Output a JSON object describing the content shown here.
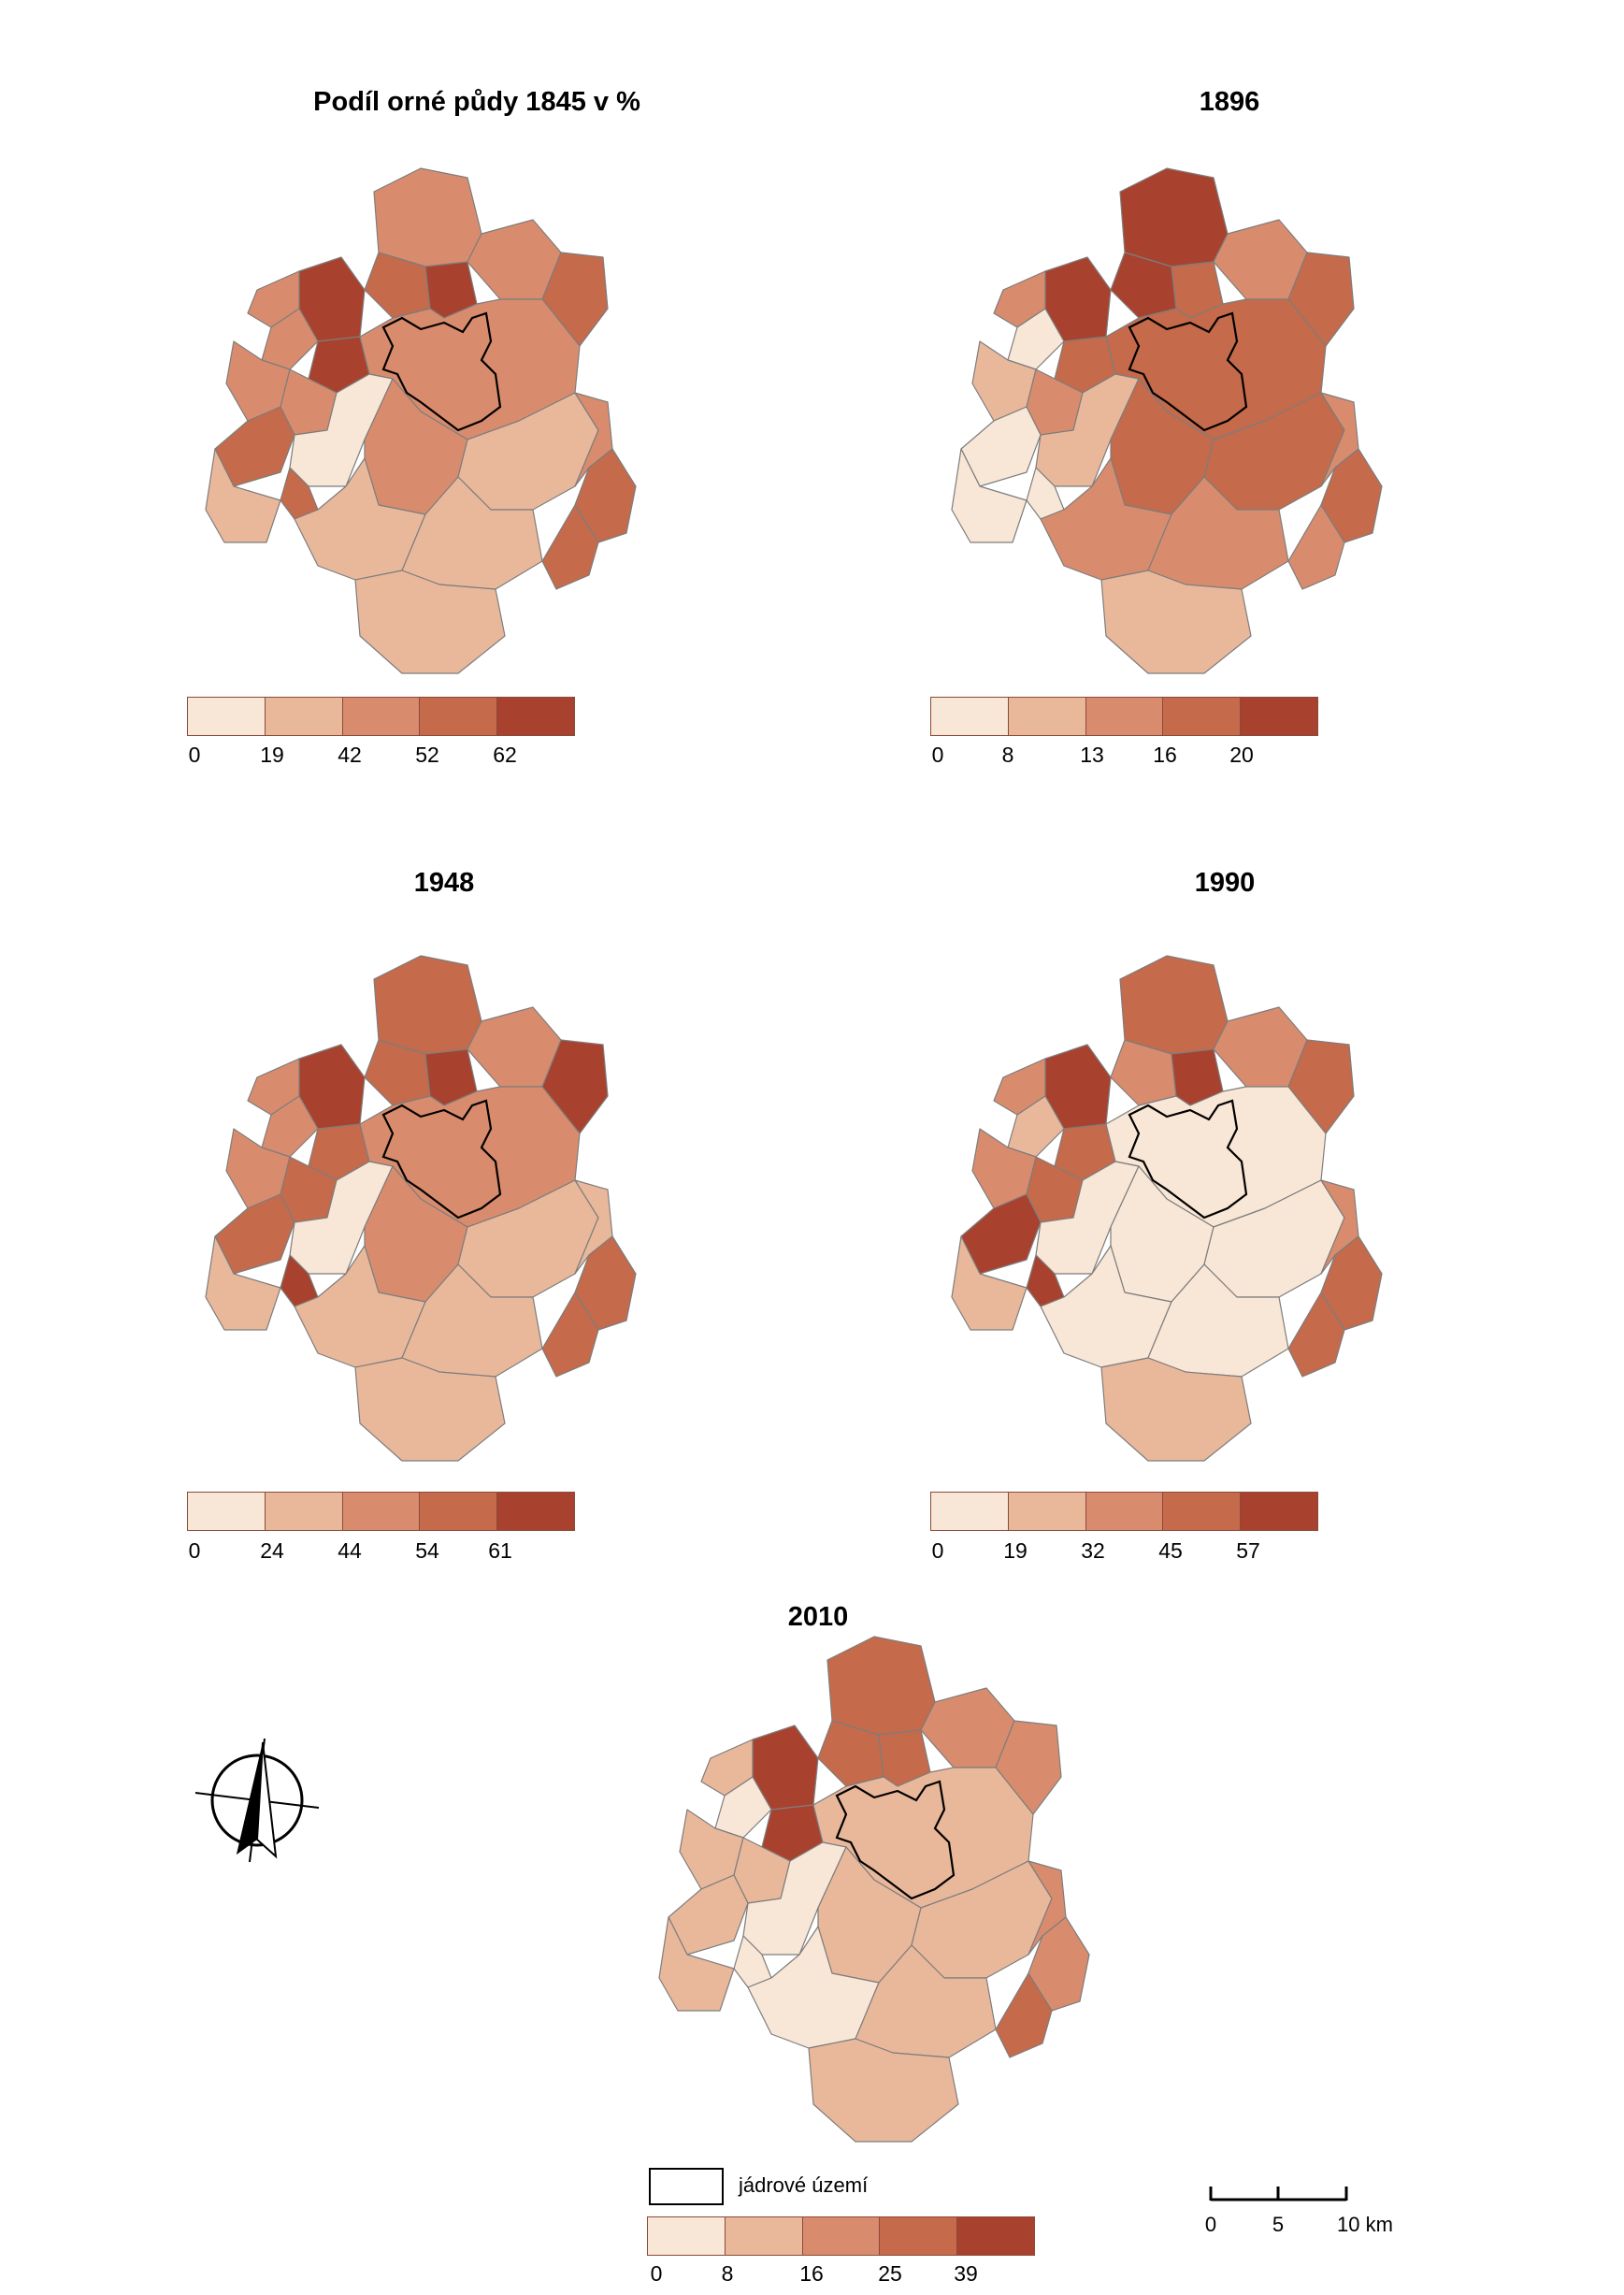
{
  "palette": [
    "#f8e6d6",
    "#e9b89b",
    "#d98c6d",
    "#c56a4b",
    "#a8422e"
  ],
  "panels": [
    {
      "id": "p1845",
      "title": "Podíl orné půdy 1845 v %",
      "ticks": [
        "0",
        "19",
        "42",
        "52",
        "62"
      ]
    },
    {
      "id": "p1896",
      "title": "1896",
      "ticks": [
        "0",
        "8",
        "13",
        "16",
        "20"
      ]
    },
    {
      "id": "p1948",
      "title": "1948",
      "ticks": [
        "0",
        "24",
        "44",
        "54",
        "61"
      ]
    },
    {
      "id": "p1990",
      "title": "1990",
      "ticks": [
        "0",
        "19",
        "32",
        "45",
        "57"
      ]
    },
    {
      "id": "p2010",
      "title": "2010",
      "ticks": [
        "0",
        "8",
        "16",
        "25",
        "39"
      ]
    }
  ],
  "core_legend": {
    "label": "jádrové území"
  },
  "scale_bar": {
    "ticks": [
      "0",
      "5",
      "10 km"
    ]
  },
  "north_arrow": {
    "icon": "north-arrow-icon"
  }
}
